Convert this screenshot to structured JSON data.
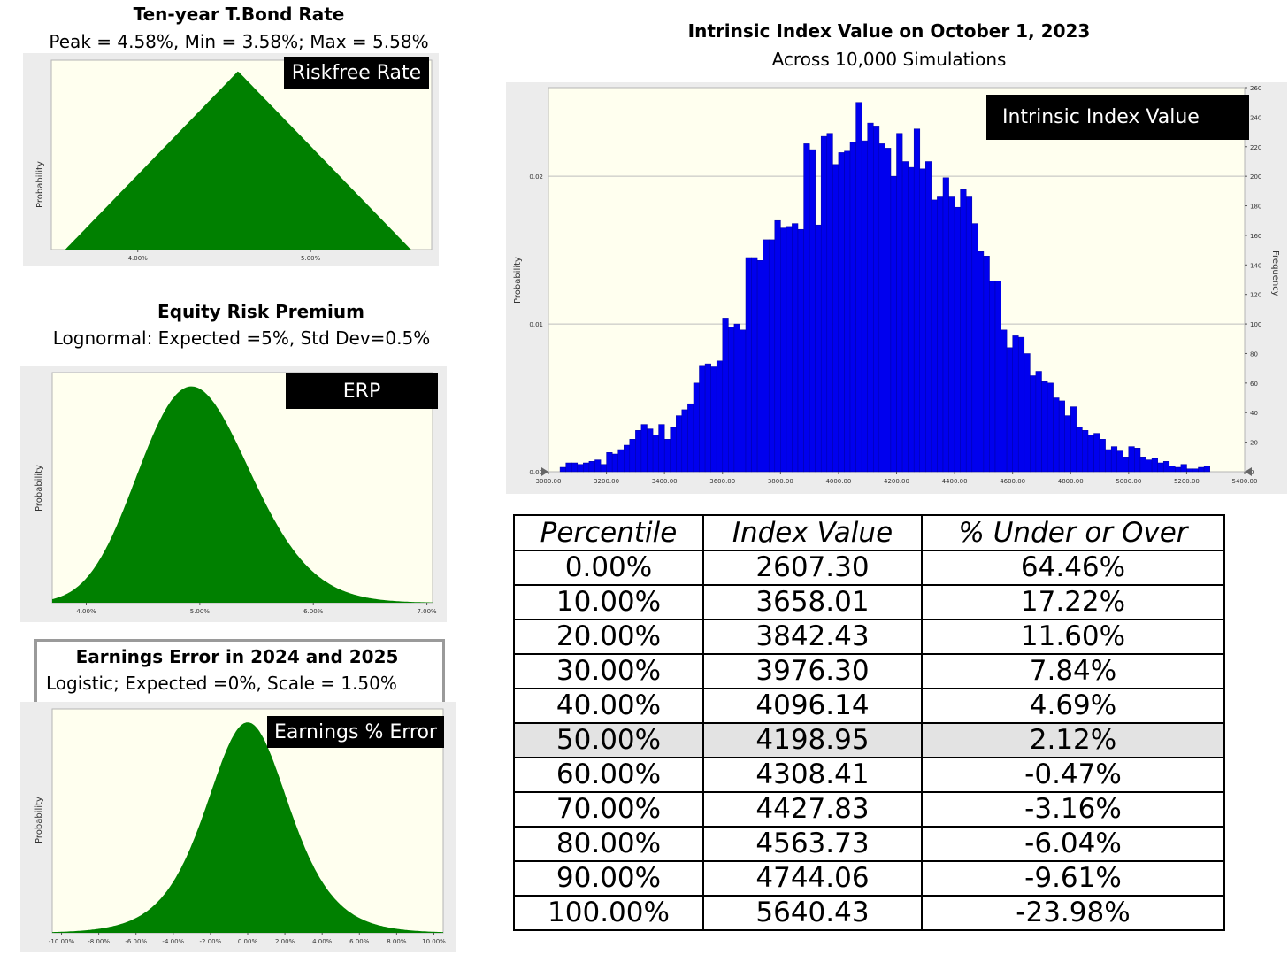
{
  "riskfree": {
    "title": "Ten-year T.Bond Rate",
    "subtitle": "Peak = 4.58%, Min = 3.58%;  Max = 5.58%",
    "label": "Riskfree Rate",
    "ylabel": "Probability",
    "xticks": [
      "4.00%",
      "5.00%"
    ]
  },
  "erp": {
    "title": "Equity Risk Premium",
    "subtitle": "Lognormal: Expected =5%, Std Dev=0.5%",
    "label": "ERP",
    "ylabel": "Probability",
    "xticks": [
      "4.00%",
      "5.00%",
      "6.00%",
      "7.00%"
    ]
  },
  "earnings": {
    "title": "Earnings Error in 2024 and 2025",
    "subtitle": "Logistic; Expected =0%, Scale = 1.50%",
    "label": "Earnings % Error",
    "ylabel": "Probability",
    "xticks": [
      "-10.00%",
      "-8.00%",
      "-6.00%",
      "-4.00%",
      "-2.00%",
      "0.00%",
      "2.00%",
      "4.00%",
      "6.00%",
      "8.00%",
      "10.00%"
    ]
  },
  "intrinsic": {
    "title": "Intrinsic Index Value on October 1, 2023",
    "subtitle": "Across 10,000 Simulations",
    "label": "Intrinsic Index Value",
    "ylabel_left": "Probability",
    "ylabel_right": "Frequency",
    "yticks_left": [
      "0.00",
      "0.01",
      "0.02"
    ],
    "yticks_right": [
      "0",
      "20",
      "40",
      "60",
      "80",
      "100",
      "120",
      "140",
      "160",
      "180",
      "200",
      "220",
      "240",
      "260"
    ],
    "xticks": [
      "3000.00",
      "3200.00",
      "3400.00",
      "3600.00",
      "3800.00",
      "4000.00",
      "4200.00",
      "4400.00",
      "4600.00",
      "4800.00",
      "5000.00",
      "5200.00",
      "5400.00"
    ]
  },
  "table": {
    "headers": [
      "Percentile",
      "Index Value",
      "% Under or Over"
    ],
    "rows": [
      [
        "0.00%",
        "2607.30",
        "64.46%"
      ],
      [
        "10.00%",
        "3658.01",
        "17.22%"
      ],
      [
        "20.00%",
        "3842.43",
        "11.60%"
      ],
      [
        "30.00%",
        "3976.30",
        "7.84%"
      ],
      [
        "40.00%",
        "4096.14",
        "4.69%"
      ],
      [
        "50.00%",
        "4198.95",
        "2.12%"
      ],
      [
        "60.00%",
        "4308.41",
        "-0.47%"
      ],
      [
        "70.00%",
        "4427.83",
        "-3.16%"
      ],
      [
        "80.00%",
        "4563.73",
        "-6.04%"
      ],
      [
        "90.00%",
        "4744.06",
        "-9.61%"
      ],
      [
        "100.00%",
        "5640.43",
        "-23.98%"
      ]
    ],
    "highlight_row": 5
  },
  "chart_data": [
    {
      "type": "area",
      "title": "Ten-year T.Bond Rate",
      "distribution": "triangular",
      "peak": 4.58,
      "min": 3.58,
      "max": 5.58,
      "xlim": [
        3.5,
        5.7
      ],
      "color": "#008000"
    },
    {
      "type": "area",
      "title": "Equity Risk Premium",
      "distribution": "lognormal",
      "expected": 5,
      "std_dev": 0.5,
      "xlim": [
        3.7,
        7.05
      ],
      "color": "#008000"
    },
    {
      "type": "area",
      "title": "Earnings Error in 2024 and 2025",
      "distribution": "logistic",
      "expected": 0,
      "scale": 1.5,
      "xlim": [
        -10.5,
        10.5
      ],
      "color": "#008000"
    },
    {
      "type": "bar",
      "title": "Intrinsic Index Value on October 1, 2023",
      "color": "#0000ee",
      "bin_start": 3040,
      "bin_width": 20,
      "xlim": [
        3000,
        5400
      ],
      "ylim_frequency": [
        0,
        260
      ],
      "frequencies": [
        3,
        6,
        6,
        5,
        6,
        7,
        8,
        5,
        13,
        12,
        15,
        18,
        22,
        28,
        32,
        29,
        25,
        32,
        22,
        30,
        38,
        42,
        46,
        60,
        72,
        73,
        71,
        75,
        104,
        98,
        100,
        96,
        145,
        145,
        143,
        157,
        157,
        170,
        165,
        166,
        168,
        164,
        222,
        218,
        167,
        227,
        229,
        208,
        216,
        217,
        223,
        250,
        224,
        236,
        234,
        222,
        219,
        200,
        229,
        210,
        206,
        232,
        205,
        210,
        184,
        186,
        199,
        186,
        179,
        191,
        186,
        168,
        149,
        146,
        129,
        129,
        96,
        84,
        92,
        91,
        80,
        65,
        68,
        61,
        60,
        50,
        48,
        38,
        44,
        30,
        28,
        25,
        26,
        22,
        15,
        17,
        14,
        10,
        17,
        16,
        10,
        8,
        9,
        6,
        7,
        4,
        3,
        5,
        2,
        2,
        3,
        4
      ]
    }
  ]
}
